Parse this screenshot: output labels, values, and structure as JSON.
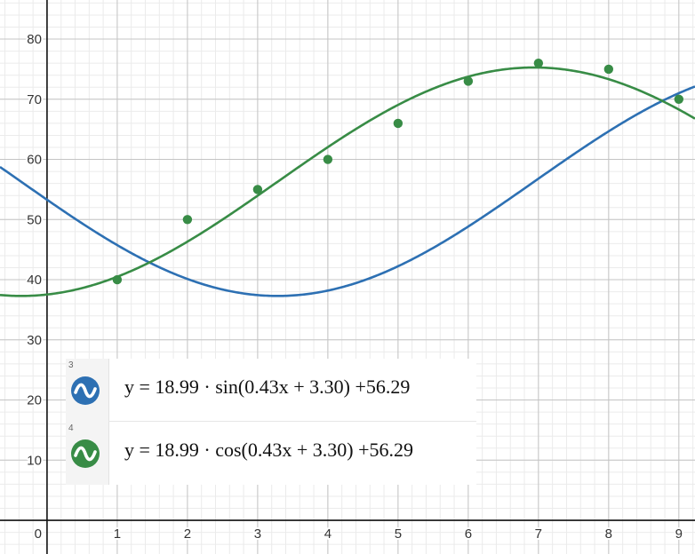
{
  "chart_data": {
    "type": "scatter",
    "xlim": [
      -0.67,
      9.23
    ],
    "ylim": [
      -5.6,
      86.5
    ],
    "x_ticks": [
      1,
      2,
      3,
      4,
      5,
      6,
      7,
      8,
      9
    ],
    "y_ticks": [
      10,
      20,
      30,
      40,
      50,
      60,
      70,
      80
    ],
    "origin_label": "0",
    "grid": true,
    "points": {
      "color": "#388c46",
      "x": [
        1,
        2,
        3,
        4,
        5,
        6,
        7,
        8,
        9
      ],
      "y": [
        40,
        50,
        55,
        60,
        66,
        73,
        76,
        75,
        70
      ]
    },
    "curves": [
      {
        "id": "3",
        "color": "#2d70b3",
        "func": "sin",
        "a": 18.99,
        "b": 0.43,
        "c": 3.3,
        "d": 56.29,
        "equation": "y = 18.99 · sin(0.43x + 3.30) +56.29"
      },
      {
        "id": "4",
        "color": "#388c46",
        "func": "cos",
        "a": 18.99,
        "b": 0.43,
        "c": 3.3,
        "d": 56.29,
        "equation": "y = 18.99 · cos(0.43x + 3.30) +56.29"
      }
    ]
  },
  "legend": {
    "rows": [
      {
        "number": "3",
        "equation": "y = 18.99 · sin(0.43x + 3.30) +56.29",
        "icon": "wave-icon",
        "color": "#2d70b3"
      },
      {
        "number": "4",
        "equation": "y = 18.99 · cos(0.43x + 3.30) +56.29",
        "icon": "wave-icon",
        "color": "#388c46"
      }
    ]
  }
}
